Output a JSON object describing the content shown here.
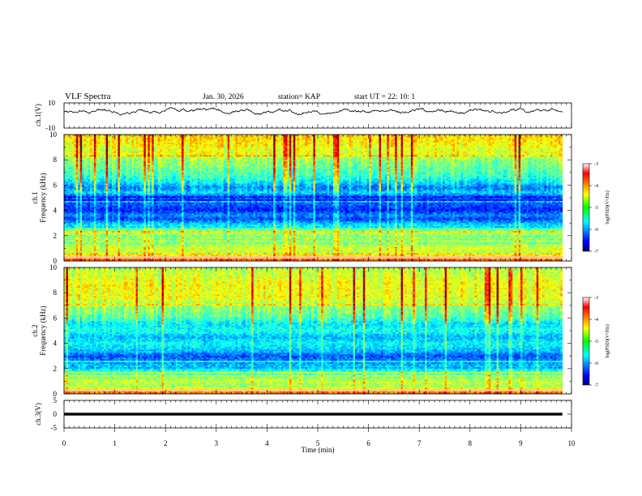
{
  "header": {
    "title": "VLF Spectra",
    "date": "Jan. 30, 2026",
    "station": "station= KAP",
    "start": "start  UT  =   22: 10: 1"
  },
  "chart_data": [
    {
      "type": "line",
      "name": "ch1-voltage",
      "ylabel": "ch.1(V)",
      "ylim": [
        -10,
        10
      ],
      "yticks": [
        "10",
        "-10"
      ],
      "xlim": [
        0,
        10
      ],
      "x_end": 9.82,
      "mean": 3.5,
      "amplitude": 3.0
    },
    {
      "type": "heatmap",
      "name": "ch1-spectrogram",
      "ylabel": "ch.1\nFrequency (kHz)",
      "ylabel_lines": [
        "ch.1",
        "Frequency (kHz)"
      ],
      "ylim": [
        0,
        10
      ],
      "yticks": [
        "0",
        "2",
        "4",
        "6",
        "8",
        "10"
      ],
      "xlim": [
        0,
        10
      ],
      "x_end": 9.82,
      "colorbar": {
        "label": "log(PSD)(V²/Hz)",
        "ticks": [
          "-3",
          "-4",
          "-5",
          "-6",
          "-7"
        ],
        "range": [
          -7,
          -3
        ]
      },
      "frequency_profile": [
        [
          0.0,
          -3.8
        ],
        [
          0.3,
          -4.2
        ],
        [
          0.6,
          -4.8
        ],
        [
          1.0,
          -4.6
        ],
        [
          1.5,
          -5.1
        ],
        [
          2.0,
          -5.0
        ],
        [
          2.3,
          -4.7
        ],
        [
          2.6,
          -5.3
        ],
        [
          3.0,
          -5.8
        ],
        [
          3.3,
          -6.2
        ],
        [
          3.7,
          -6.0
        ],
        [
          4.0,
          -6.4
        ],
        [
          4.5,
          -6.1
        ],
        [
          5.0,
          -6.5
        ],
        [
          5.4,
          -5.6
        ],
        [
          5.8,
          -6.0
        ],
        [
          6.2,
          -5.6
        ],
        [
          6.6,
          -5.3
        ],
        [
          7.0,
          -5.2
        ],
        [
          7.5,
          -5.0
        ],
        [
          8.0,
          -4.9
        ],
        [
          8.5,
          -4.7
        ],
        [
          9.0,
          -4.5
        ],
        [
          9.5,
          -4.4
        ],
        [
          10.0,
          -4.3
        ]
      ]
    },
    {
      "type": "heatmap",
      "name": "ch2-spectrogram",
      "ylabel": "ch.2\nFrequency (kHz)",
      "ylabel_lines": [
        "ch.2",
        "Frequency (kHz)"
      ],
      "ylim": [
        0,
        10
      ],
      "yticks": [
        "0",
        "2",
        "4",
        "6",
        "8",
        "10"
      ],
      "xlim": [
        0,
        10
      ],
      "x_end": 9.82,
      "colorbar": {
        "label": "log(PSD)(V²/Hz)",
        "ticks": [
          "-3",
          "-4",
          "-5",
          "-6",
          "-7"
        ],
        "range": [
          -7,
          -3
        ]
      },
      "frequency_profile": [
        [
          0.0,
          -3.9
        ],
        [
          0.3,
          -4.3
        ],
        [
          0.6,
          -4.9
        ],
        [
          1.0,
          -4.7
        ],
        [
          1.5,
          -5.2
        ],
        [
          2.0,
          -5.6
        ],
        [
          2.5,
          -5.9
        ],
        [
          3.0,
          -6.2
        ],
        [
          3.5,
          -5.7
        ],
        [
          4.0,
          -5.5
        ],
        [
          4.5,
          -5.8
        ],
        [
          5.0,
          -5.4
        ],
        [
          5.5,
          -5.6
        ],
        [
          6.0,
          -5.2
        ],
        [
          6.5,
          -5.0
        ],
        [
          7.0,
          -4.9
        ],
        [
          7.5,
          -4.6
        ],
        [
          8.0,
          -4.6
        ],
        [
          8.5,
          -4.5
        ],
        [
          9.0,
          -4.6
        ],
        [
          9.5,
          -4.7
        ],
        [
          10.0,
          -4.8
        ]
      ]
    },
    {
      "type": "line",
      "name": "ch3-voltage",
      "ylabel": "ch.3(V)",
      "ylim": [
        -5,
        5
      ],
      "yticks": [
        "5",
        "0",
        "-5"
      ],
      "xlim": [
        0,
        10
      ],
      "x_end": 9.82,
      "mean": 0,
      "amplitude": 0.5
    }
  ],
  "x_axis": {
    "label": "Time (min)",
    "ticks": [
      "0",
      "1",
      "2",
      "3",
      "4",
      "5",
      "6",
      "7",
      "8",
      "9",
      "10"
    ]
  }
}
